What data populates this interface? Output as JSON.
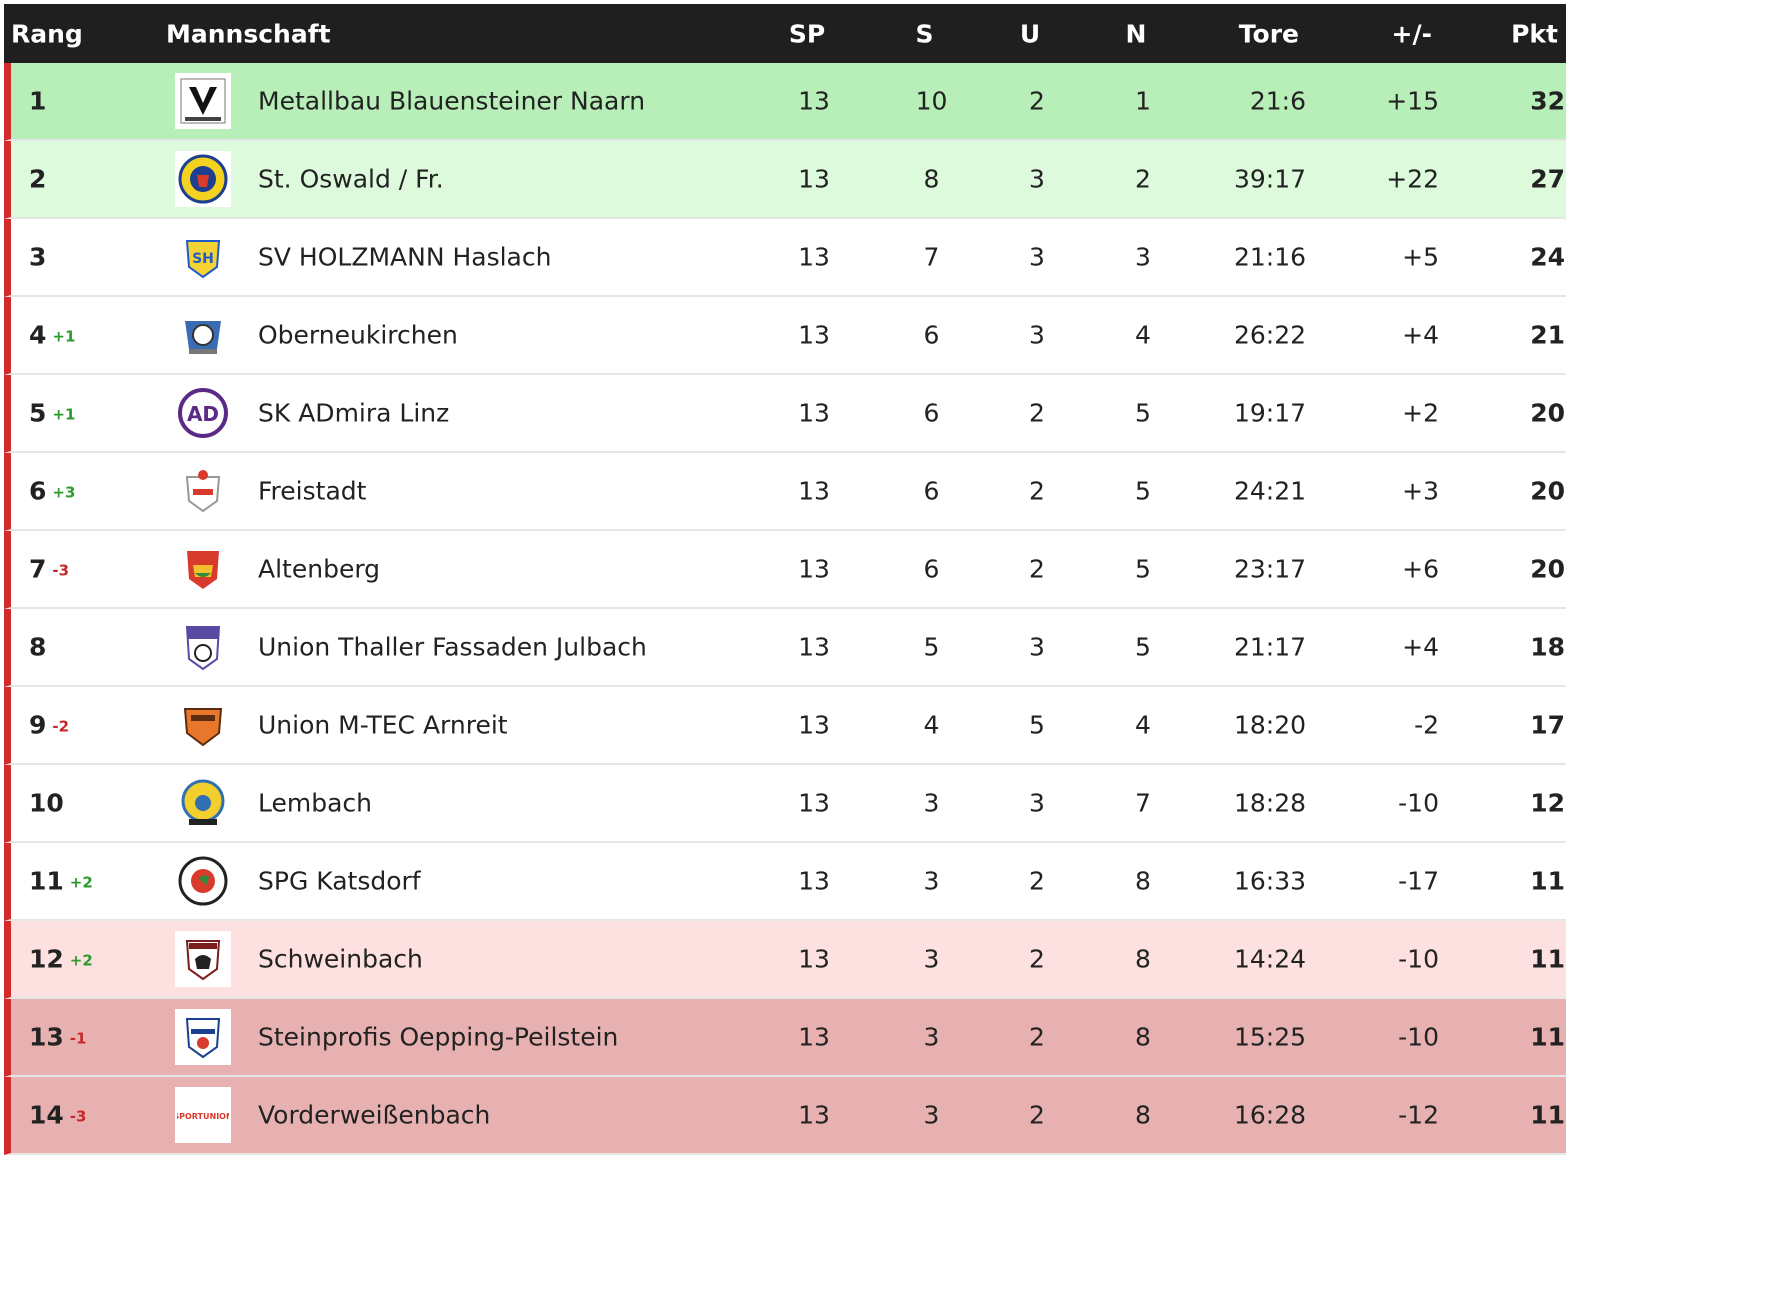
{
  "headers": {
    "rang": "Rang",
    "team": "Mannschaft",
    "sp": "SP",
    "s": "S",
    "u": "U",
    "n": "N",
    "tore": "Tore",
    "diff": "+/-",
    "pkt": "Pkt"
  },
  "colors": {
    "header_bg": "#1f1f1f",
    "row_promotion": "#b8eeb8",
    "row_qualify": "#ddfadd",
    "row_normal": "#ffffff",
    "row_relegation": "#fde0e0",
    "row_descent": "#e8b1b1",
    "left_border": "#d32b2b",
    "trend_up": "#2e9b2e",
    "trend_down": "#c62828"
  },
  "rows": [
    {
      "rank": "1",
      "trend": "",
      "trend_dir": "",
      "team": "Metallbau Blauensteiner Naarn",
      "sp": "13",
      "s": "10",
      "u": "2",
      "n": "1",
      "tore": "21:6",
      "diff": "+15",
      "pkt": "32",
      "bg": "#b8eeb8",
      "logo": "naarn-crest-icon"
    },
    {
      "rank": "2",
      "trend": "",
      "trend_dir": "",
      "team": "St. Oswald / Fr.",
      "sp": "13",
      "s": "8",
      "u": "3",
      "n": "2",
      "tore": "39:17",
      "diff": "+22",
      "pkt": "27",
      "bg": "#ddfadd",
      "logo": "st-oswald-crest-icon"
    },
    {
      "rank": "3",
      "trend": "",
      "trend_dir": "",
      "team": "SV HOLZMANN Haslach",
      "sp": "13",
      "s": "7",
      "u": "3",
      "n": "3",
      "tore": "21:16",
      "diff": "+5",
      "pkt": "24",
      "bg": "#ffffff",
      "logo": "haslach-crest-icon"
    },
    {
      "rank": "4",
      "trend": "+1",
      "trend_dir": "up",
      "team": "Oberneukirchen",
      "sp": "13",
      "s": "6",
      "u": "3",
      "n": "4",
      "tore": "26:22",
      "diff": "+4",
      "pkt": "21",
      "bg": "#ffffff",
      "logo": "oberneukirchen-crest-icon"
    },
    {
      "rank": "5",
      "trend": "+1",
      "trend_dir": "up",
      "team": "SK ADmira Linz",
      "sp": "13",
      "s": "6",
      "u": "2",
      "n": "5",
      "tore": "19:17",
      "diff": "+2",
      "pkt": "20",
      "bg": "#ffffff",
      "logo": "admira-crest-icon"
    },
    {
      "rank": "6",
      "trend": "+3",
      "trend_dir": "up",
      "team": "Freistadt",
      "sp": "13",
      "s": "6",
      "u": "2",
      "n": "5",
      "tore": "24:21",
      "diff": "+3",
      "pkt": "20",
      "bg": "#ffffff",
      "logo": "freistadt-crest-icon"
    },
    {
      "rank": "7",
      "trend": "-3",
      "trend_dir": "down",
      "team": "Altenberg",
      "sp": "13",
      "s": "6",
      "u": "2",
      "n": "5",
      "tore": "23:17",
      "diff": "+6",
      "pkt": "20",
      "bg": "#ffffff",
      "logo": "altenberg-crest-icon"
    },
    {
      "rank": "8",
      "trend": "",
      "trend_dir": "",
      "team": "Union Thaller Fassaden Julbach",
      "sp": "13",
      "s": "5",
      "u": "3",
      "n": "5",
      "tore": "21:17",
      "diff": "+4",
      "pkt": "18",
      "bg": "#ffffff",
      "logo": "julbach-crest-icon"
    },
    {
      "rank": "9",
      "trend": "-2",
      "trend_dir": "down",
      "team": "Union M-TEC Arnreit",
      "sp": "13",
      "s": "4",
      "u": "5",
      "n": "4",
      "tore": "18:20",
      "diff": "-2",
      "pkt": "17",
      "bg": "#ffffff",
      "logo": "arnreit-crest-icon"
    },
    {
      "rank": "10",
      "trend": "",
      "trend_dir": "",
      "team": "Lembach",
      "sp": "13",
      "s": "3",
      "u": "3",
      "n": "7",
      "tore": "18:28",
      "diff": "-10",
      "pkt": "12",
      "bg": "#ffffff",
      "logo": "lembach-crest-icon"
    },
    {
      "rank": "11",
      "trend": "+2",
      "trend_dir": "up",
      "team": "SPG Katsdorf",
      "sp": "13",
      "s": "3",
      "u": "2",
      "n": "8",
      "tore": "16:33",
      "diff": "-17",
      "pkt": "11",
      "bg": "#ffffff",
      "logo": "katsdorf-crest-icon"
    },
    {
      "rank": "12",
      "trend": "+2",
      "trend_dir": "up",
      "team": "Schweinbach",
      "sp": "13",
      "s": "3",
      "u": "2",
      "n": "8",
      "tore": "14:24",
      "diff": "-10",
      "pkt": "11",
      "bg": "#fde0e0",
      "logo": "schweinbach-crest-icon"
    },
    {
      "rank": "13",
      "trend": "-1",
      "trend_dir": "down",
      "team": "Steinprofis Oepping-Peilstein",
      "sp": "13",
      "s": "3",
      "u": "2",
      "n": "8",
      "tore": "15:25",
      "diff": "-10",
      "pkt": "11",
      "bg": "#e8b1b1",
      "logo": "oepping-crest-icon"
    },
    {
      "rank": "14",
      "trend": "-3",
      "trend_dir": "down",
      "team": "Vorderweißenbach",
      "sp": "13",
      "s": "3",
      "u": "2",
      "n": "8",
      "tore": "16:28",
      "diff": "-12",
      "pkt": "11",
      "bg": "#e8b1b1",
      "logo": "vorderweissenbach-crest-icon"
    }
  ]
}
